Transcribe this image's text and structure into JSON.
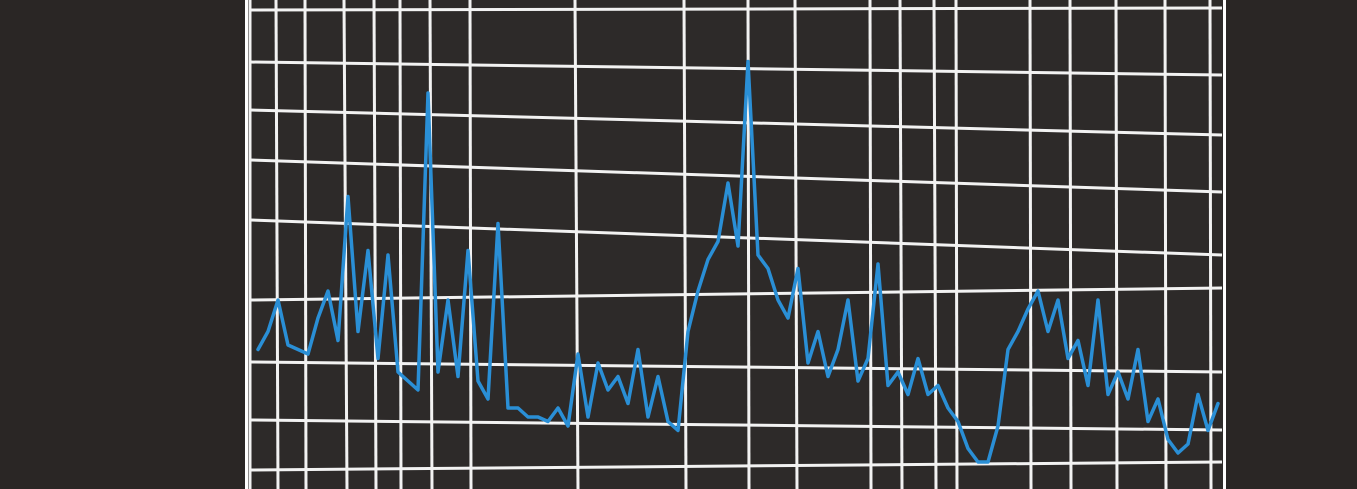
{
  "chart_data": {
    "type": "line",
    "series": [
      {
        "color": "#2a8fd6",
        "values": [
          2.9,
          3.3,
          4.0,
          3.0,
          2.9,
          2.8,
          3.6,
          4.2,
          3.1,
          6.3,
          3.3,
          5.1,
          2.7,
          5.0,
          2.4,
          2.2,
          2.0,
          8.6,
          2.4,
          4.0,
          2.3,
          5.1,
          2.2,
          1.8,
          5.7,
          1.6,
          1.6,
          1.4,
          1.4,
          1.3,
          1.6,
          1.2,
          2.8,
          1.4,
          2.6,
          2.0,
          2.3,
          1.7,
          2.9,
          1.4,
          2.3,
          1.3,
          1.1,
          3.3,
          4.2,
          4.9,
          5.3,
          6.6,
          5.2,
          9.3,
          5.0,
          4.7,
          4.0,
          3.6,
          4.7,
          2.6,
          3.3,
          2.3,
          2.9,
          4.0,
          2.2,
          2.7,
          4.8,
          2.1,
          2.4,
          1.9,
          2.7,
          1.9,
          2.1,
          1.6,
          1.3,
          0.7,
          0.4,
          0.4,
          1.2,
          2.9,
          3.3,
          3.8,
          4.2,
          3.3,
          4.0,
          2.7,
          3.1,
          2.1,
          4.0,
          1.9,
          2.4,
          1.8,
          2.9,
          1.3,
          1.8,
          0.9,
          0.6,
          0.8,
          1.9,
          1.1,
          1.7
        ]
      }
    ],
    "ylim": [
      0,
      10
    ],
    "grid": true
  }
}
